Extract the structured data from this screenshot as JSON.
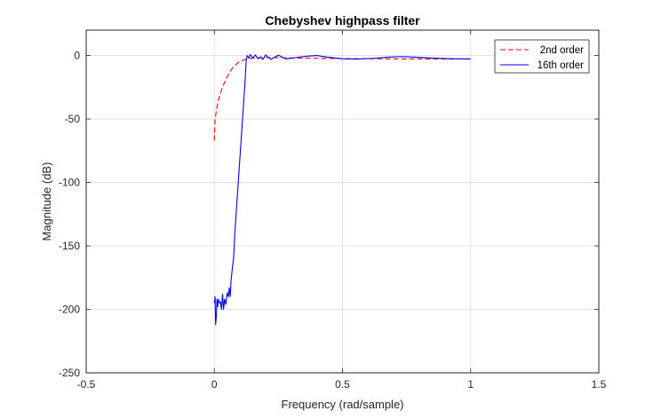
{
  "chart_data": {
    "type": "line",
    "title": "Chebyshev highpass filter",
    "xlabel": "Frequency (rad/sample)",
    "ylabel": "Magnitude (dB)",
    "xlim": [
      -0.5,
      1.5
    ],
    "ylim": [
      -250,
      20
    ],
    "xticks": [
      -0.5,
      0,
      0.5,
      1,
      1.5
    ],
    "xtick_labels": [
      "-0.5",
      "0",
      "0.5",
      "1",
      "1.5"
    ],
    "yticks": [
      0,
      -50,
      -100,
      -150,
      -200,
      -250
    ],
    "ytick_labels": [
      "0",
      "-50",
      "-100",
      "-150",
      "-200",
      "-250"
    ],
    "grid": true,
    "legend_position": "top-right",
    "series": [
      {
        "name": "2nd order",
        "color": "#ff0000",
        "style": "dashed",
        "points": [
          [
            0,
            -67
          ],
          [
            0.003,
            -50
          ],
          [
            0.006,
            -46
          ],
          [
            0.01,
            -41
          ],
          [
            0.015,
            -36
          ],
          [
            0.02,
            -32
          ],
          [
            0.03,
            -26
          ],
          [
            0.04,
            -21
          ],
          [
            0.05,
            -17
          ],
          [
            0.06,
            -13
          ],
          [
            0.07,
            -10
          ],
          [
            0.08,
            -8
          ],
          [
            0.09,
            -6
          ],
          [
            0.1,
            -4.5
          ],
          [
            0.12,
            -3
          ],
          [
            0.15,
            -2
          ],
          [
            0.2,
            -1.5
          ],
          [
            0.3,
            -1.8
          ],
          [
            0.4,
            -2.2
          ],
          [
            0.5,
            -2.4
          ],
          [
            0.6,
            -2.5
          ],
          [
            0.7,
            -2.6
          ],
          [
            0.8,
            -2.6
          ],
          [
            0.9,
            -2.7
          ],
          [
            1.0,
            -2.7
          ]
        ]
      },
      {
        "name": "16th order",
        "color": "#0000ff",
        "style": "solid",
        "points": [
          [
            0,
            -195
          ],
          [
            0.003,
            -190
          ],
          [
            0.005,
            -212
          ],
          [
            0.008,
            -205
          ],
          [
            0.01,
            -192
          ],
          [
            0.013,
            -198
          ],
          [
            0.016,
            -192
          ],
          [
            0.02,
            -195
          ],
          [
            0.024,
            -194
          ],
          [
            0.028,
            -200
          ],
          [
            0.032,
            -188
          ],
          [
            0.036,
            -200
          ],
          [
            0.04,
            -192
          ],
          [
            0.045,
            -196
          ],
          [
            0.05,
            -187
          ],
          [
            0.055,
            -190
          ],
          [
            0.058,
            -183
          ],
          [
            0.062,
            -190
          ],
          [
            0.065,
            -178
          ],
          [
            0.07,
            -168
          ],
          [
            0.075,
            -160
          ],
          [
            0.08,
            -140
          ],
          [
            0.085,
            -125
          ],
          [
            0.09,
            -110
          ],
          [
            0.095,
            -95
          ],
          [
            0.1,
            -80
          ],
          [
            0.105,
            -65
          ],
          [
            0.11,
            -50
          ],
          [
            0.115,
            -35
          ],
          [
            0.12,
            -20
          ],
          [
            0.124,
            -5
          ],
          [
            0.128,
            0
          ],
          [
            0.135,
            -2
          ],
          [
            0.14,
            0.8
          ],
          [
            0.15,
            -2
          ],
          [
            0.16,
            0.5
          ],
          [
            0.17,
            -2.5
          ],
          [
            0.18,
            -1
          ],
          [
            0.19,
            -3
          ],
          [
            0.2,
            0.5
          ],
          [
            0.22,
            -3
          ],
          [
            0.25,
            0.3
          ],
          [
            0.28,
            -2.7
          ],
          [
            0.32,
            -1.5
          ],
          [
            0.36,
            -0.5
          ],
          [
            0.4,
            0
          ],
          [
            0.44,
            -1.2
          ],
          [
            0.5,
            -2.5
          ],
          [
            0.55,
            -2.8
          ],
          [
            0.62,
            -2.2
          ],
          [
            0.68,
            -1.2
          ],
          [
            0.73,
            -0.8
          ],
          [
            0.78,
            -1.2
          ],
          [
            0.85,
            -2
          ],
          [
            0.92,
            -2.5
          ],
          [
            1.0,
            -2.7
          ]
        ]
      }
    ]
  }
}
